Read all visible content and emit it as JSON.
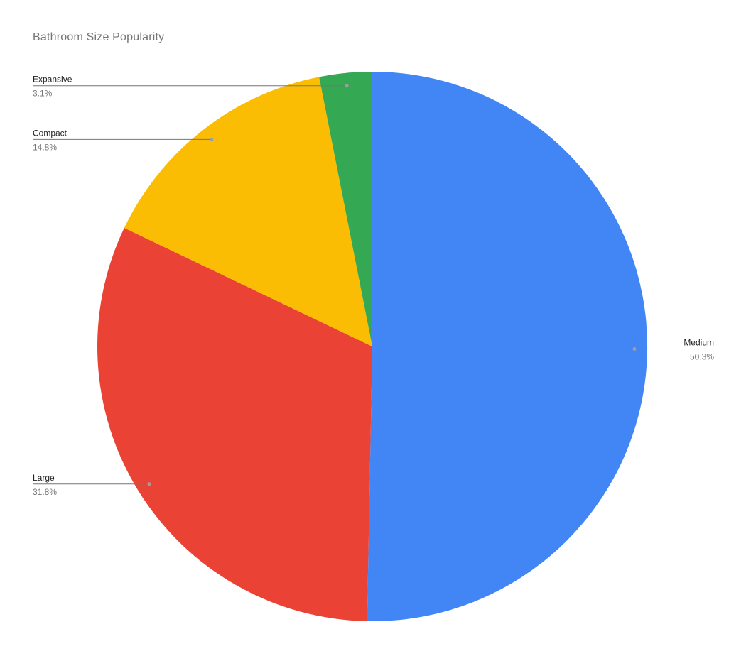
{
  "chart_data": {
    "type": "pie",
    "title": "Bathroom Size Popularity",
    "categories": [
      "Medium",
      "Large",
      "Compact",
      "Expansive"
    ],
    "values": [
      50.3,
      31.8,
      14.8,
      3.1
    ],
    "percent_labels": [
      "50.3%",
      "31.8%",
      "14.8%",
      "3.1%"
    ],
    "colors": [
      "#4285f4",
      "#ea4335",
      "#fbbc04",
      "#34a853"
    ],
    "start_angle_deg": 0,
    "direction": "clockwise",
    "legend_position": "outside-callout-labels",
    "background": "#ffffff",
    "title_color": "#757575",
    "label_color": "#212121",
    "percent_color": "#757575",
    "line_color": "#757575",
    "dot_color": "#9e9e9e"
  }
}
